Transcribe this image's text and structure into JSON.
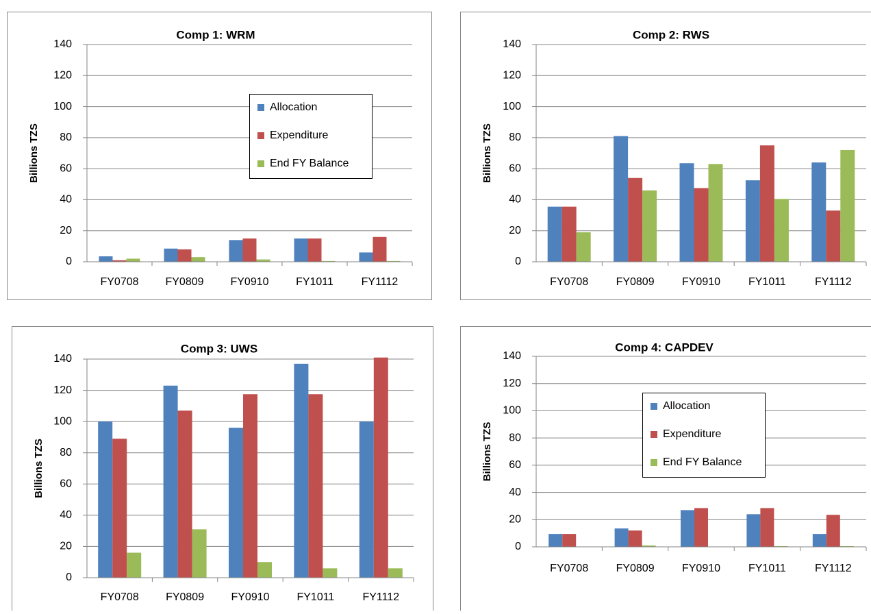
{
  "chart_data": [
    {
      "type": "bar",
      "title": "Comp 1: WRM",
      "y_label": "Billions TZS",
      "categories": [
        "FY0708",
        "FY0809",
        "FY0910",
        "FY1011",
        "FY1112"
      ],
      "series": [
        {
          "name": "Allocation",
          "color": "#4f81bd",
          "values": [
            3.5,
            8.5,
            14,
            15,
            6
          ]
        },
        {
          "name": "Expenditure",
          "color": "#c0504d",
          "values": [
            1,
            8,
            15,
            15,
            16
          ]
        },
        {
          "name": "End FY Balance",
          "color": "#9bbb59",
          "values": [
            2,
            3,
            1.5,
            0.5,
            0.5
          ]
        }
      ],
      "ylim": [
        0,
        140
      ],
      "yticks": [
        0,
        20,
        40,
        60,
        80,
        100,
        120,
        140
      ],
      "grid": true,
      "legend": "right"
    },
    {
      "type": "bar",
      "title": "Comp 2: RWS",
      "y_label": "Billions TZS",
      "categories": [
        "FY0708",
        "FY0809",
        "FY0910",
        "FY1011",
        "FY1112"
      ],
      "series": [
        {
          "color": "#4f81bd",
          "values": [
            35.5,
            81,
            63.5,
            52.5,
            64
          ]
        },
        {
          "color": "#c0504d",
          "values": [
            35.5,
            54,
            47.5,
            75,
            33
          ]
        },
        {
          "color": "#9bbb59",
          "values": [
            19,
            46,
            63,
            40.5,
            72
          ]
        }
      ],
      "ylim": [
        0,
        140
      ],
      "yticks": [
        0,
        20,
        40,
        60,
        80,
        100,
        120,
        140
      ],
      "grid": true
    },
    {
      "type": "bar",
      "title": "Comp 3: UWS",
      "y_label": "Billions TZS",
      "categories": [
        "FY0708",
        "FY0809",
        "FY0910",
        "FY1011",
        "FY1112"
      ],
      "series": [
        {
          "color": "#4f81bd",
          "values": [
            100,
            123,
            96,
            137,
            100
          ]
        },
        {
          "color": "#c0504d",
          "values": [
            89,
            107,
            117.5,
            117.5,
            141
          ]
        },
        {
          "color": "#9bbb59",
          "values": [
            16,
            31,
            10,
            6,
            6
          ]
        }
      ],
      "ylim": [
        0,
        140
      ],
      "yticks": [
        0,
        20,
        40,
        60,
        80,
        100,
        120,
        140
      ],
      "grid": true
    },
    {
      "type": "bar",
      "title": "Comp 4: CAPDEV",
      "y_label": "Billions TZS",
      "categories": [
        "FY0708",
        "FY0809",
        "FY0910",
        "FY1011",
        "FY1112"
      ],
      "series": [
        {
          "name": "Allocation",
          "color": "#4f81bd",
          "values": [
            9.5,
            13.5,
            27,
            24,
            9.5
          ]
        },
        {
          "name": "Expenditure",
          "color": "#c0504d",
          "values": [
            9.5,
            12,
            28.5,
            28.5,
            23.5
          ]
        },
        {
          "name": "End FY Balance",
          "color": "#9bbb59",
          "values": [
            0,
            1,
            0,
            0.5,
            0.5
          ]
        }
      ],
      "ylim": [
        0,
        140
      ],
      "yticks": [
        0,
        20,
        40,
        60,
        80,
        100,
        120,
        140
      ],
      "grid": true,
      "legend": "center"
    }
  ]
}
